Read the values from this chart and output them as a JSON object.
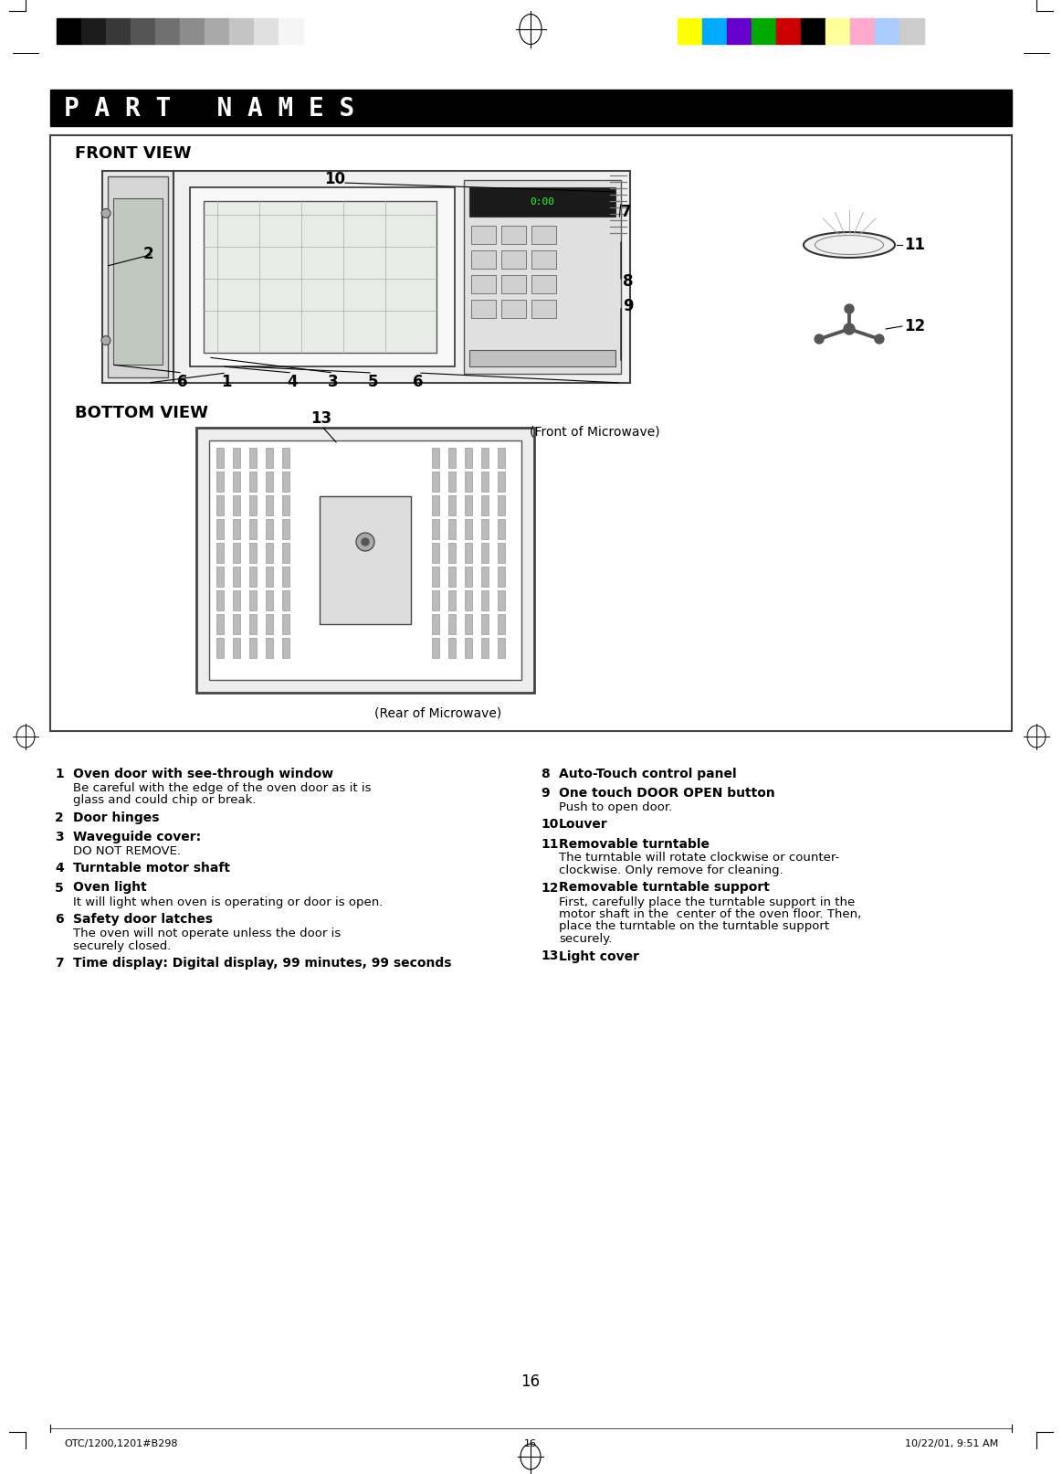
{
  "title": "P A R T   N A M E S",
  "title_bg": "#000000",
  "title_color": "#ffffff",
  "page_bg": "#ffffff",
  "page_number": "16",
  "footer_left": "OTC/1200,1201#B298",
  "footer_center": "16",
  "footer_right": "10/22/01, 9:51 AM",
  "front_view_label": "FRONT VIEW",
  "bottom_view_label": "BOTTOM VIEW",
  "front_of_microwave": "(Front of Microwave)",
  "rear_of_microwave": "(Rear of Microwave)",
  "items": [
    {
      "num": "1",
      "bold": "Oven door with see-through window",
      "sub": "Be careful with the edge of the oven door as it is\nglass and could chip or break."
    },
    {
      "num": "2",
      "bold": "Door hinges",
      "sub": ""
    },
    {
      "num": "3",
      "bold": "Waveguide cover:",
      "sub": "DO NOT REMOVE."
    },
    {
      "num": "4",
      "bold": "Turntable motor shaft",
      "sub": ""
    },
    {
      "num": "5",
      "bold": "Oven light",
      "sub": "It will light when oven is operating or door is open."
    },
    {
      "num": "6",
      "bold": "Safety door latches",
      "sub": "The oven will not operate unless the door is\nsecurely closed."
    },
    {
      "num": "7",
      "bold": "Time display: Digital display, 99 minutes, 99 seconds",
      "sub": ""
    },
    {
      "num": "8",
      "bold": "Auto-Touch control panel",
      "sub": ""
    },
    {
      "num": "9",
      "bold": "One touch DOOR OPEN button",
      "sub": "Push to open door."
    },
    {
      "num": "10",
      "bold": "Louver",
      "sub": ""
    },
    {
      "num": "11",
      "bold": "Removable turntable",
      "sub": "The turntable will rotate clockwise or counter-\nclockwise. Only remove for cleaning."
    },
    {
      "num": "12",
      "bold": "Removable turntable support",
      "sub": "First, carefully place the turntable support in the\nmotor shaft in the  center of the oven floor. Then,\nplace the turntable on the turntable support\nsecurely."
    },
    {
      "num": "13",
      "bold": "Light cover",
      "sub": ""
    }
  ],
  "color_bars_left": [
    "#000000",
    "#1c1c1c",
    "#383838",
    "#545454",
    "#707070",
    "#8c8c8c",
    "#a8a8a8",
    "#c4c4c4",
    "#e0e0e0",
    "#f5f5f5"
  ],
  "color_bars_right": [
    "#ffff00",
    "#00aaff",
    "#6600cc",
    "#00aa00",
    "#cc0000",
    "#000000",
    "#ffff99",
    "#ffaacc",
    "#aaccff",
    "#cccccc"
  ]
}
